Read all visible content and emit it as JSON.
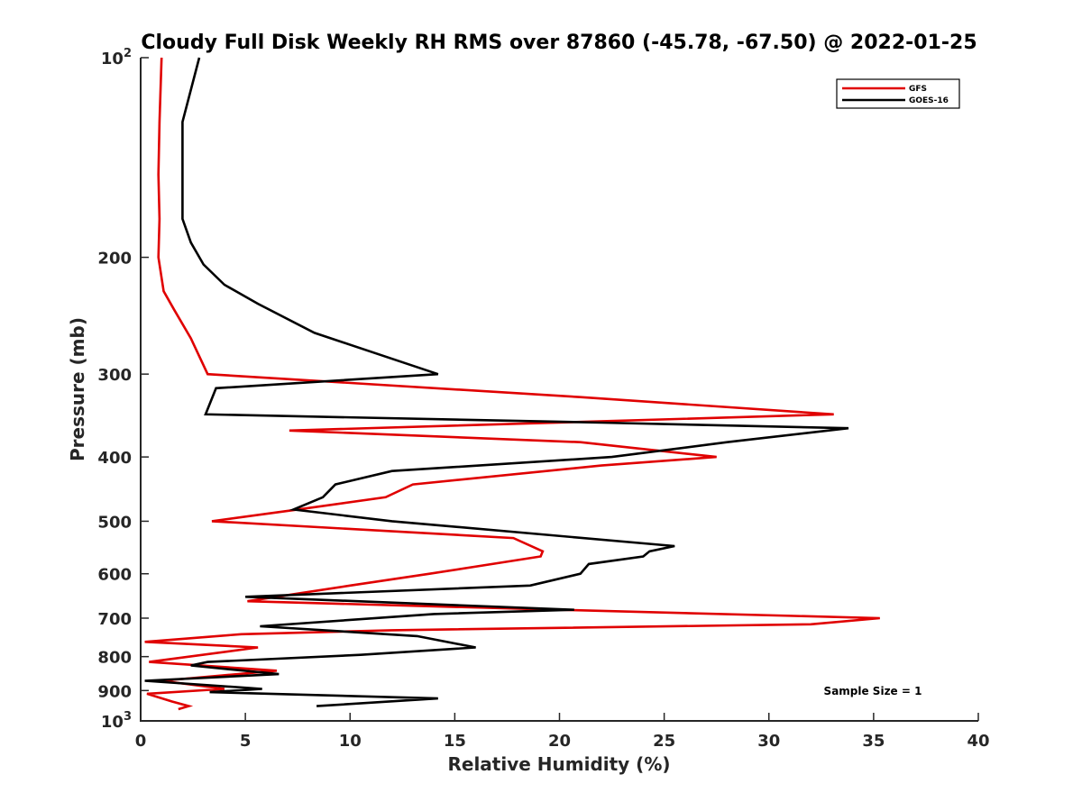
{
  "chart_data": {
    "type": "line",
    "title": "Cloudy Full Disk Weekly RH RMS over 87860 (-45.78, -67.50) @ 2022-01-25",
    "xlabel": "Relative Humidity (%)",
    "ylabel": "Pressure (mb)",
    "xlim": [
      0,
      40
    ],
    "ylim": [
      100,
      1000
    ],
    "y_scale": "log",
    "y_reversed": true,
    "grid": false,
    "legend_position": "top-right",
    "annotation": "Sample Size = 1",
    "x_ticks": [
      "0",
      "5",
      "10",
      "15",
      "20",
      "25",
      "30",
      "35",
      "40"
    ],
    "y_ticks": [
      {
        "value": 100,
        "label": "10",
        "sup": "2"
      },
      {
        "value": 200,
        "label": "200",
        "sup": ""
      },
      {
        "value": 300,
        "label": "300",
        "sup": ""
      },
      {
        "value": 400,
        "label": "400",
        "sup": ""
      },
      {
        "value": 500,
        "label": "500",
        "sup": ""
      },
      {
        "value": 600,
        "label": "600",
        "sup": ""
      },
      {
        "value": 700,
        "label": "700",
        "sup": ""
      },
      {
        "value": 800,
        "label": "800",
        "sup": ""
      },
      {
        "value": 900,
        "label": "900",
        "sup": ""
      },
      {
        "value": 1000,
        "label": "10",
        "sup": "3"
      }
    ],
    "series": [
      {
        "name": "GFS",
        "color": "#e00000",
        "points": [
          [
            1.0,
            100
          ],
          [
            0.9,
            125
          ],
          [
            0.85,
            150
          ],
          [
            0.9,
            175
          ],
          [
            0.85,
            200
          ],
          [
            1.1,
            225
          ],
          [
            1.6,
            240
          ],
          [
            2.4,
            265
          ],
          [
            3.2,
            300
          ],
          [
            21.0,
            325
          ],
          [
            33.1,
            345
          ],
          [
            7.1,
            365
          ],
          [
            21.0,
            380
          ],
          [
            27.5,
            400
          ],
          [
            22.0,
            412
          ],
          [
            13.0,
            440
          ],
          [
            11.7,
            460
          ],
          [
            7.5,
            480
          ],
          [
            3.4,
            500
          ],
          [
            17.8,
            530
          ],
          [
            19.2,
            555
          ],
          [
            19.1,
            565
          ],
          [
            13.8,
            600
          ],
          [
            10.0,
            625
          ],
          [
            5.1,
            660
          ],
          [
            20.0,
            680
          ],
          [
            35.3,
            700
          ],
          [
            32.0,
            715
          ],
          [
            12.0,
            730
          ],
          [
            4.8,
            740
          ],
          [
            0.2,
            760
          ],
          [
            5.6,
            775
          ],
          [
            0.4,
            815
          ],
          [
            6.5,
            840
          ],
          [
            1.0,
            870
          ],
          [
            4.0,
            895
          ],
          [
            0.3,
            910
          ],
          [
            1.5,
            935
          ],
          [
            2.3,
            950
          ],
          [
            1.8,
            960
          ]
        ]
      },
      {
        "name": "GOES-16",
        "color": "#000000",
        "points": [
          [
            2.8,
            100
          ],
          [
            2.0,
            125
          ],
          [
            2.0,
            150
          ],
          [
            2.0,
            175
          ],
          [
            2.4,
            190
          ],
          [
            3.0,
            205
          ],
          [
            4.0,
            220
          ],
          [
            5.6,
            235
          ],
          [
            8.3,
            260
          ],
          [
            14.2,
            300
          ],
          [
            3.6,
            315
          ],
          [
            3.1,
            345
          ],
          [
            22.0,
            355
          ],
          [
            33.8,
            362
          ],
          [
            28.0,
            380
          ],
          [
            22.5,
            400
          ],
          [
            12.0,
            420
          ],
          [
            9.3,
            440
          ],
          [
            8.7,
            460
          ],
          [
            7.3,
            480
          ],
          [
            12.0,
            500
          ],
          [
            25.5,
            545
          ],
          [
            24.3,
            555
          ],
          [
            24.0,
            565
          ],
          [
            21.4,
            580
          ],
          [
            21.0,
            600
          ],
          [
            18.6,
            625
          ],
          [
            5.0,
            650
          ],
          [
            20.7,
            680
          ],
          [
            14.0,
            690
          ],
          [
            5.7,
            720
          ],
          [
            13.2,
            745
          ],
          [
            16.0,
            775
          ],
          [
            10.5,
            795
          ],
          [
            3.2,
            815
          ],
          [
            2.4,
            825
          ],
          [
            6.6,
            850
          ],
          [
            0.2,
            870
          ],
          [
            5.8,
            895
          ],
          [
            3.3,
            905
          ],
          [
            14.2,
            925
          ],
          [
            8.4,
            950
          ]
        ]
      }
    ]
  }
}
